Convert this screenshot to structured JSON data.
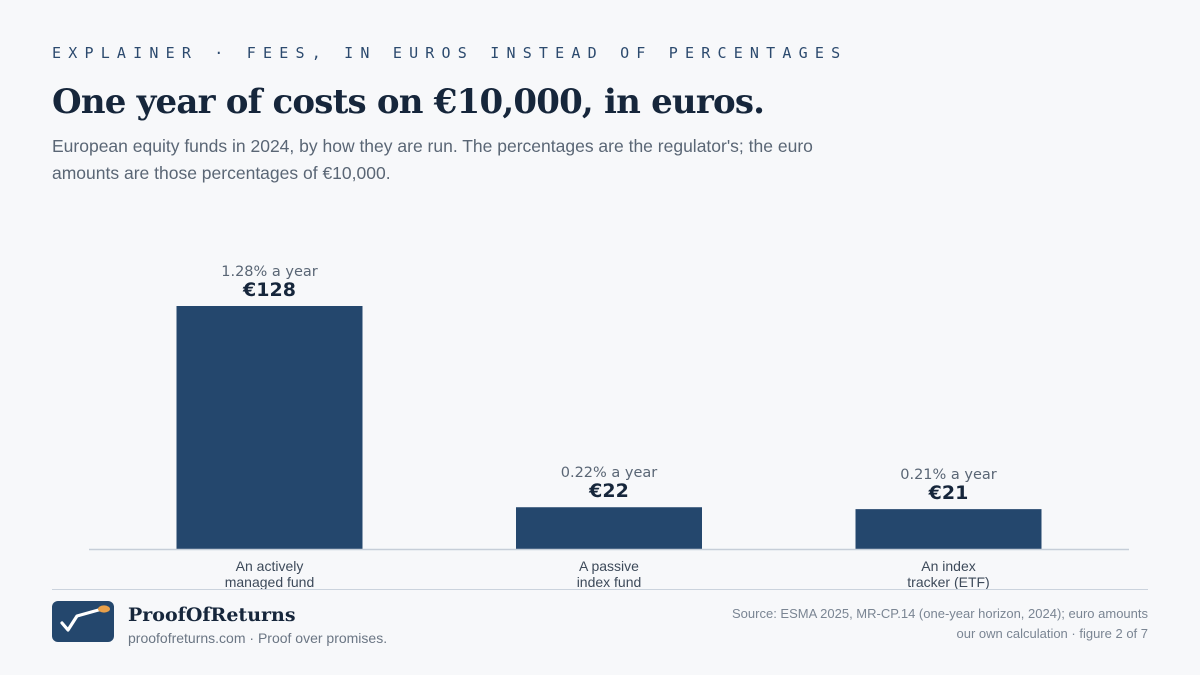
{
  "header": {
    "kicker": "EXPLAINER · FEES, IN EUROS INSTEAD OF PERCENTAGES",
    "title": "One year of costs on €10,000, in euros.",
    "subtitle": "European equity funds in 2024, by how they are run. The percentages are the regulator's; the euro amounts are those percentages of €10,000."
  },
  "chart_data": {
    "type": "bar",
    "title": "One year of costs on €10,000, in euros.",
    "xlabel": "",
    "ylabel": "",
    "ylim": [
      0,
      128
    ],
    "grid": false,
    "categories": [
      [
        "An actively",
        "managed fund"
      ],
      [
        "A passive",
        "index fund"
      ],
      [
        "An index",
        "tracker (ETF)"
      ]
    ],
    "values": [
      128,
      22,
      21
    ],
    "percent_labels": [
      "1.28% a year",
      "0.22% a year",
      "0.21% a year"
    ],
    "value_labels": [
      "€128",
      "€22",
      "€21"
    ],
    "bar_color": "#24476d"
  },
  "footer": {
    "brand": "ProofOfReturns",
    "tagline": "proofofreturns.com · Proof over promises.",
    "source": "Source: ESMA 2025, MR-CP.14 (one-year horizon, 2024); euro amounts our own calculation · figure 2 of 7"
  },
  "colors": {
    "accent": "#24476d",
    "logo_dot": "#e8a04a",
    "baseline": "#c6ced8"
  },
  "icons": {
    "logo": "rising-line-check-icon"
  }
}
